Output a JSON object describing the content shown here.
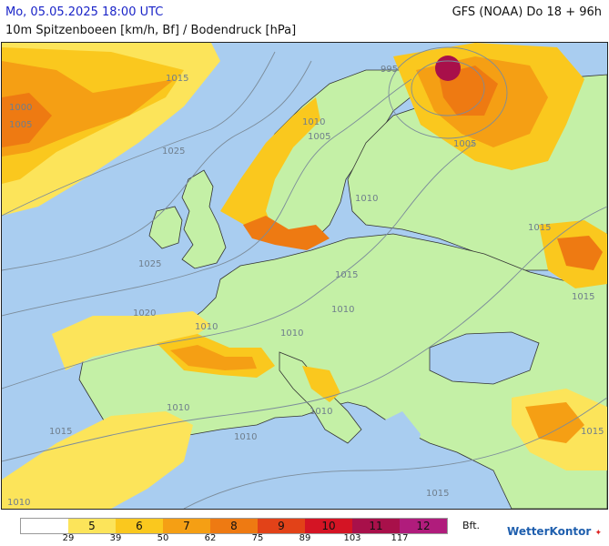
{
  "header": {
    "date": "Mo, 05.05.2025 18:00 UTC",
    "model": "GFS (NOAA) Do 18 + 96h",
    "subtitle": "10m Spitzenboeen [km/h, Bf] / Bodendruck [hPa]"
  },
  "colors": {
    "sea": "#a9cdf0",
    "land": "#c4f0a6",
    "bf5": "#fce45a",
    "bf6": "#fac81e",
    "bf7": "#f59f14",
    "bf8": "#ee7a12",
    "bf9": "#e24218",
    "bf10": "#d41424",
    "bf11": "#a8104a",
    "bf12": "#b01c7c",
    "isobar": "#7c8c9a",
    "border": "#333333"
  },
  "legend": {
    "unit": "Bft.",
    "classes": [
      {
        "label": "",
        "color": "#ffffff"
      },
      {
        "label": "5",
        "color": "#fce45a"
      },
      {
        "label": "6",
        "color": "#fac81e"
      },
      {
        "label": "7",
        "color": "#f59f14"
      },
      {
        "label": "8",
        "color": "#ee7a12"
      },
      {
        "label": "9",
        "color": "#e24218"
      },
      {
        "label": "10",
        "color": "#d41424"
      },
      {
        "label": "11",
        "color": "#a8104a"
      },
      {
        "label": "12",
        "color": "#b01c7c"
      }
    ],
    "thresholds": [
      "29",
      "39",
      "50",
      "62",
      "75",
      "89",
      "103",
      "117"
    ]
  },
  "pressure_labels": [
    "995",
    "1000",
    "1005",
    "1005",
    "1005",
    "1010",
    "1010",
    "1010",
    "1010",
    "1010",
    "1010",
    "1010",
    "1010",
    "1010",
    "1015",
    "1015",
    "1015",
    "1015",
    "1015",
    "1015",
    "1015",
    "1020",
    "1025",
    "1025"
  ],
  "logo": "WetterKontor"
}
